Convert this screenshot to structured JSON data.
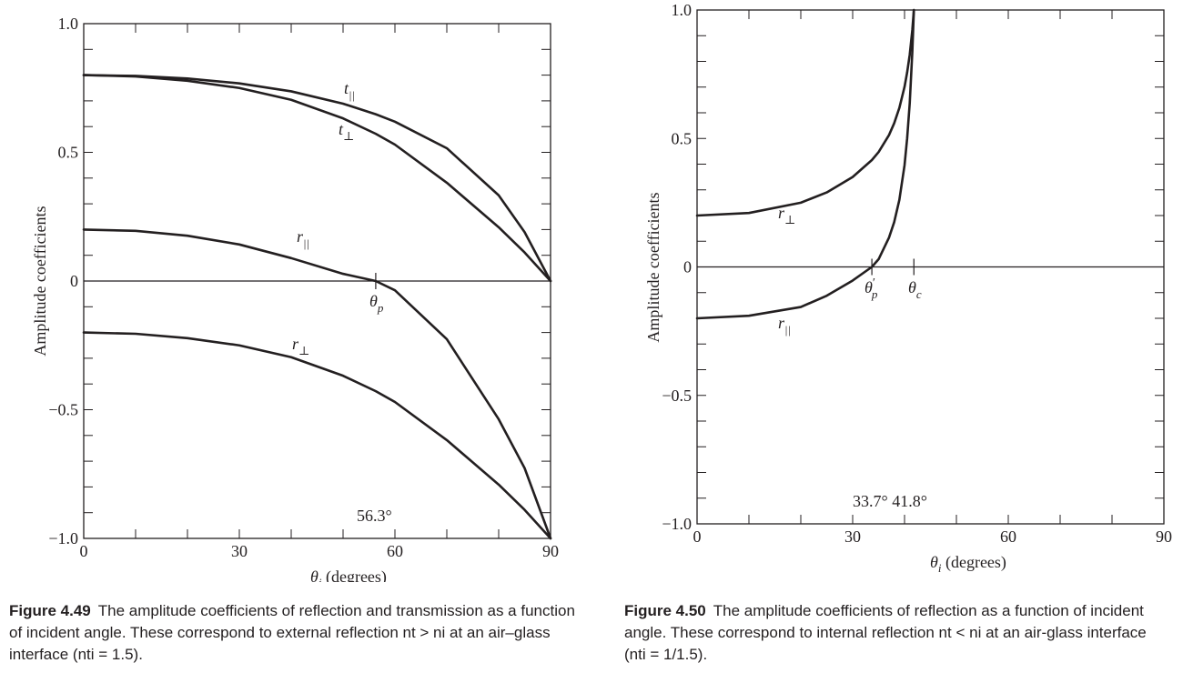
{
  "chart_data": [
    {
      "type": "line",
      "xlabel": "θi (degrees)",
      "ylabel": "Amplitude coefficients",
      "xlim": [
        0,
        90
      ],
      "ylim": [
        -1.0,
        1.0
      ],
      "xticks": [
        0,
        30,
        60,
        90
      ],
      "xtick_labels": [
        "0",
        "30",
        "60",
        "90"
      ],
      "yticks": [
        -1.0,
        -0.5,
        0,
        0.5,
        1.0
      ],
      "ytick_labels": [
        "−1.0",
        "−0.5",
        "0",
        "0.5",
        "1.0"
      ],
      "grid": false,
      "x": [
        0,
        10,
        20,
        30,
        40,
        50,
        56.3,
        60,
        70,
        80,
        85,
        90
      ],
      "series": [
        {
          "name": "t||",
          "label_base": "t",
          "label_sub": "||",
          "values": [
            0.8,
            0.797,
            0.787,
            0.768,
            0.737,
            0.689,
            0.648,
            0.619,
            0.516,
            0.333,
            0.19,
            0.0
          ]
        },
        {
          "name": "t⊥",
          "label_base": "t",
          "label_sub": "⊥",
          "values": [
            0.8,
            0.795,
            0.778,
            0.75,
            0.704,
            0.632,
            0.572,
            0.53,
            0.382,
            0.209,
            0.111,
            0.0
          ]
        },
        {
          "name": "r||",
          "label_base": "r",
          "label_sub": "||",
          "values": [
            0.2,
            0.195,
            0.176,
            0.142,
            0.089,
            0.028,
            0.0,
            -0.036,
            -0.226,
            -0.537,
            -0.727,
            -1.0
          ]
        },
        {
          "name": "r⊥",
          "label_base": "r",
          "label_sub": "⊥",
          "values": [
            -0.2,
            -0.205,
            -0.222,
            -0.25,
            -0.296,
            -0.368,
            -0.428,
            -0.47,
            -0.618,
            -0.791,
            -0.889,
            -1.0
          ]
        }
      ],
      "annotations": [
        {
          "id": "theta_p",
          "text_base": "θ",
          "text_sub": "p",
          "x": 56.3,
          "y": 0
        },
        {
          "id": "angle",
          "text": "56.3°",
          "x": 56.3,
          "y": -1.0
        }
      ]
    },
    {
      "type": "line",
      "xlabel": "θi (degrees)",
      "ylabel": "Amplitude coefficients",
      "xlim": [
        0,
        90
      ],
      "ylim": [
        -1.0,
        1.0
      ],
      "xticks": [
        0,
        30,
        60,
        90
      ],
      "xtick_labels": [
        "0",
        "30",
        "60",
        "90"
      ],
      "yticks": [
        -1.0,
        -0.5,
        0,
        0.5,
        1.0
      ],
      "ytick_labels": [
        "−1.0",
        "−0.5",
        "0",
        "0.5",
        "1.0"
      ],
      "grid": false,
      "series": [
        {
          "name": "r⊥",
          "label_base": "r",
          "label_sub": "⊥",
          "x": [
            0,
            10,
            20,
            25,
            30,
            33.7,
            35,
            37,
            38,
            39,
            40,
            40.5,
            41,
            41.5,
            41.8
          ],
          "values": [
            0.2,
            0.21,
            0.25,
            0.29,
            0.35,
            0.416,
            0.447,
            0.513,
            0.559,
            0.619,
            0.701,
            0.757,
            0.826,
            0.922,
            1.0
          ]
        },
        {
          "name": "r||",
          "label_base": "r",
          "label_sub": "||",
          "x": [
            0,
            10,
            20,
            25,
            30,
            33.7,
            35,
            37,
            38,
            39,
            40,
            40.5,
            41,
            41.5,
            41.8
          ],
          "values": [
            -0.2,
            -0.19,
            -0.156,
            -0.112,
            -0.053,
            0.0,
            0.03,
            0.114,
            0.174,
            0.261,
            0.396,
            0.5,
            0.637,
            0.837,
            1.0
          ]
        }
      ],
      "annotations": [
        {
          "id": "theta_p_prime",
          "text_base": "θ",
          "text_sub": "p",
          "text_sup": "′",
          "x": 33.7,
          "y": 0
        },
        {
          "id": "theta_c",
          "text_base": "θ",
          "text_sub": "c",
          "x": 41.8,
          "y": 0
        },
        {
          "id": "angles",
          "text": "33.7° 41.8°",
          "x": 33.7,
          "y": -1.0
        }
      ]
    }
  ],
  "captions": [
    {
      "label": "Figure 4.49",
      "text": "The amplitude coefficients of reflection and transmission as a function of incident angle. These correspond to external reflection nt > ni at an air–glass interface (nti = 1.5)."
    },
    {
      "label": "Figure 4.50",
      "text": "The amplitude coefficients of reflection as a function of incident angle. These correspond to internal reflection nt < ni at an air-glass interface (nti = 1/1.5)."
    }
  ]
}
